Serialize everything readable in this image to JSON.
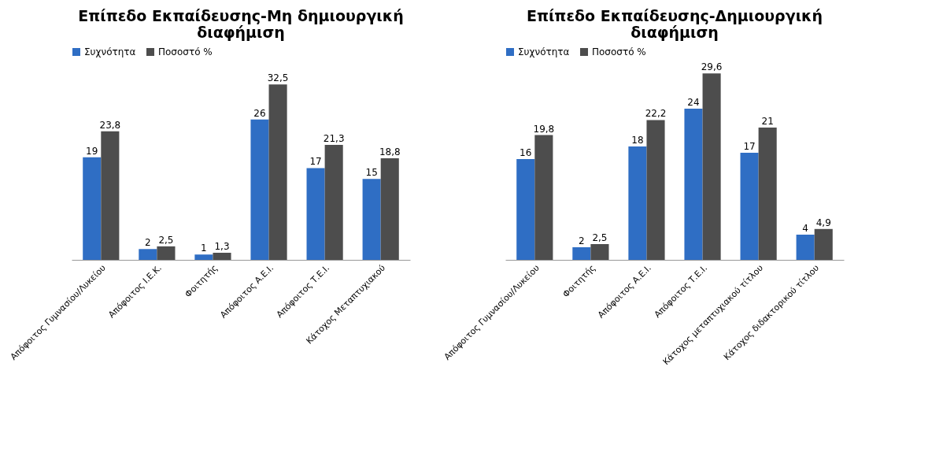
{
  "chart_data": [
    {
      "type": "bar",
      "title": "Επίπεδο Εκπαίδευσης-Μη δημιουργική διαφήμιση",
      "categories": [
        "Απόφοιτος Γυμνασίου/Λυκείου",
        "Απόφοιτος Ι.Ε.Κ.",
        "Φοιτητής",
        "Απόφοιτος Α.Ε.Ι.",
        "Απόφοιτος Τ.Ε.Ι.",
        "Κάτοχος Μεταπτυχιακού"
      ],
      "series": [
        {
          "name": "Συχνότητα",
          "color": "#2f6ec4",
          "values": [
            19,
            2,
            1,
            26,
            17,
            15
          ],
          "value_labels": [
            "19",
            "2",
            "1",
            "26",
            "17",
            "15"
          ]
        },
        {
          "name": "Ποσοστό %",
          "color": "#4d4d4d",
          "values": [
            23.8,
            2.5,
            1.3,
            32.5,
            21.3,
            18.8
          ],
          "value_labels": [
            "23,8",
            "2,5",
            "1,3",
            "32,5",
            "21,3",
            "18,8"
          ]
        }
      ],
      "legend": "top",
      "tick_labels": "x"
    },
    {
      "type": "bar",
      "title": "Επίπεδο Εκπαίδευσης-Δημιουργική διαφήμιση",
      "categories": [
        "Απόφοιτος Γυμνασίου/Λυκείου",
        "Φοιτητής",
        "Απόφοιτος Α.Ε.Ι.",
        "Απόφοιτος Τ.Ε.Ι.",
        "Κάτοχος μεταπτυχιακού τίτλου",
        "Κάτοχος διδακτορικού τίτλου"
      ],
      "series": [
        {
          "name": "Συχνότητα",
          "color": "#2f6ec4",
          "values": [
            16,
            2,
            18,
            24,
            17,
            4
          ],
          "value_labels": [
            "16",
            "2",
            "18",
            "24",
            "17",
            "4"
          ]
        },
        {
          "name": "Ποσοστό %",
          "color": "#4d4d4d",
          "values": [
            19.8,
            2.5,
            22.2,
            29.6,
            21,
            4.9
          ],
          "value_labels": [
            "19,8",
            "2,5",
            "22,2",
            "29,6",
            "21",
            "4,9"
          ]
        }
      ],
      "legend": "top",
      "tick_labels": "x"
    }
  ]
}
